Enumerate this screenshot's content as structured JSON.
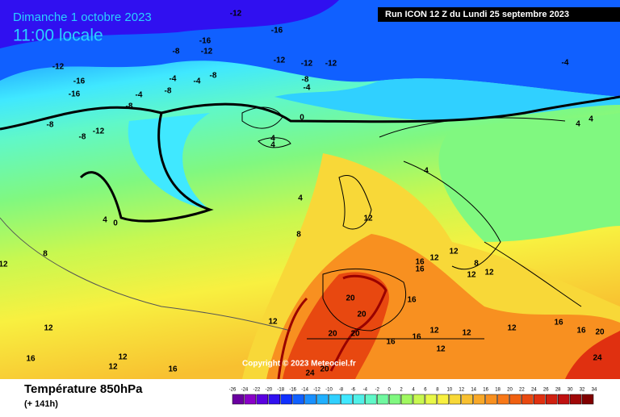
{
  "header": {
    "date": "Dimanche 1 octobre 2023",
    "time": "11:00 locale",
    "run": "Run ICON 12 Z du Lundi 25 septembre 2023"
  },
  "copyright": "Copyright © 2023 Meteociel.fr",
  "footer": {
    "title": "Température 850hPa",
    "lead": "(+ 141h)"
  },
  "legend": {
    "ticks": [
      -26,
      -24,
      -22,
      -20,
      -18,
      -16,
      -14,
      -12,
      -10,
      -8,
      -6,
      -4,
      -2,
      0,
      2,
      4,
      6,
      8,
      10,
      12,
      14,
      16,
      18,
      20,
      22,
      24,
      26,
      28,
      30,
      32,
      34
    ],
    "colors": [
      "#6a00a0",
      "#8a00c8",
      "#5a00e0",
      "#3010f0",
      "#1030ff",
      "#1060ff",
      "#1890ff",
      "#20b0ff",
      "#30d0ff",
      "#40e8ff",
      "#50f0e8",
      "#60f8c8",
      "#70f8a0",
      "#80f880",
      "#a0f860",
      "#c8f850",
      "#e8f848",
      "#f8f040",
      "#f8d838",
      "#f8c030",
      "#f8a828",
      "#f89020",
      "#f87818",
      "#f06010",
      "#e84810",
      "#e03010",
      "#d02010",
      "#c01010",
      "#a00808",
      "#800000"
    ]
  },
  "contour_labels": [
    -12,
    -16,
    -16,
    -12,
    -8,
    -12,
    -12,
    -12,
    -8,
    -4,
    -4,
    -4,
    -8,
    -8,
    -4,
    -8,
    -16,
    -16,
    -12,
    -8,
    -12,
    -8,
    -4,
    4,
    4,
    0,
    4,
    4,
    4,
    4,
    4,
    0,
    8,
    12,
    16,
    16,
    12,
    12,
    8,
    12,
    12,
    20,
    20,
    20,
    20,
    16,
    16,
    16,
    12,
    12,
    12,
    12,
    16,
    16,
    20,
    24,
    24,
    20,
    12,
    12,
    16,
    12,
    12,
    16,
    8,
    12
  ]
}
